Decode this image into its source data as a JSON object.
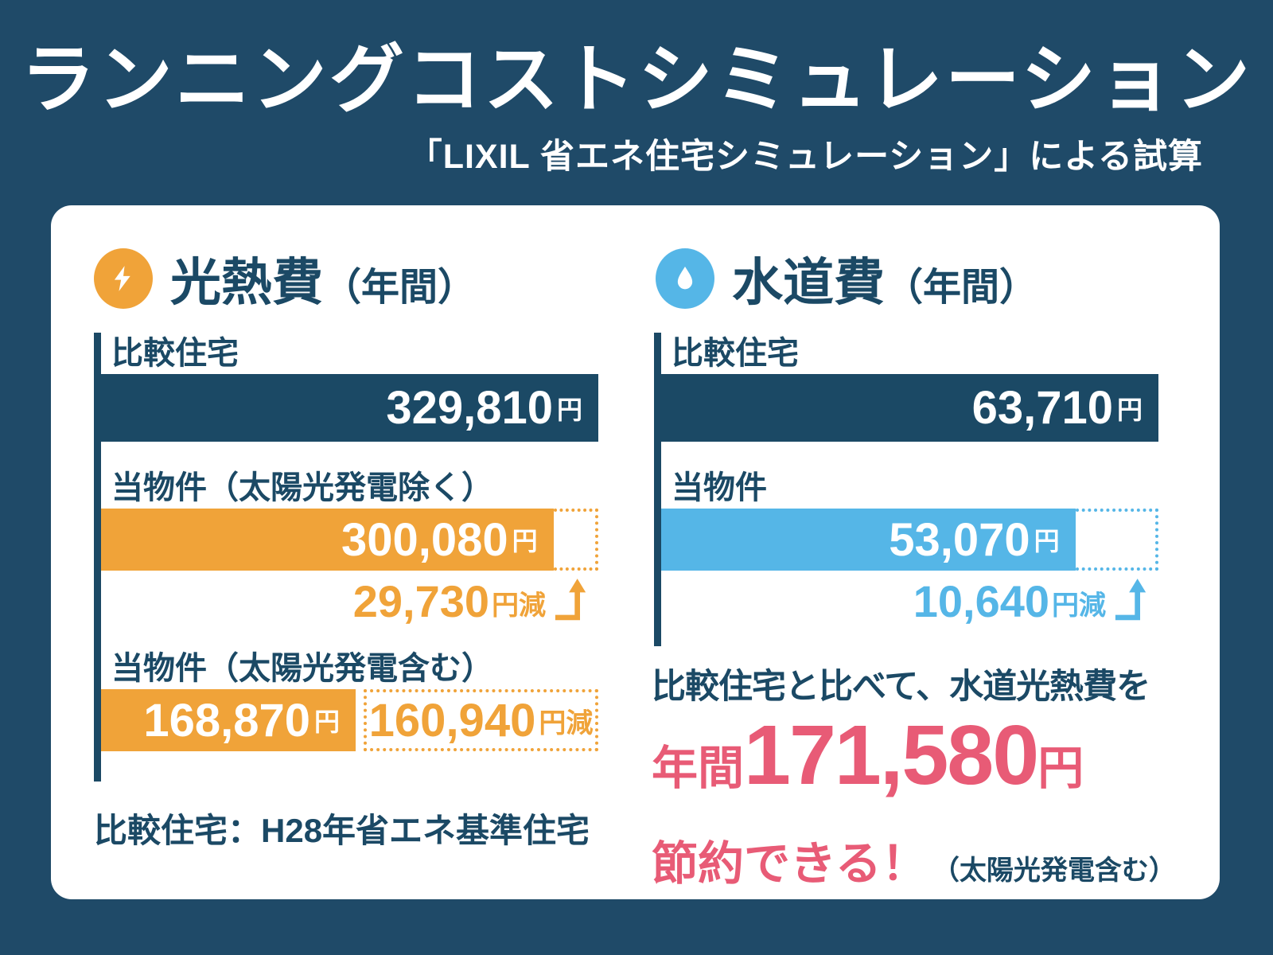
{
  "header": {
    "title": "ランニングコストシミュレーション",
    "subtitle": "「LIXIL 省エネ住宅シミュレーション」による試算"
  },
  "note": "比較住宅：H28年省エネ基準住宅",
  "summary": {
    "line1": "比較住宅と比べて、水道光熱費を",
    "prefix": "年間",
    "amount": "171,580",
    "unit": "円",
    "line3": "節約できる！",
    "line3_note": "（太陽光発電含む）"
  },
  "colors": {
    "background_navy": "#1F4A68",
    "bar_navy": "#1B4965",
    "accent_orange": "#F0A339",
    "accent_blue": "#55B6E7",
    "accent_pink": "#E85B76",
    "card_white": "#FFFFFF"
  },
  "icons": {
    "energy": "lightning-icon",
    "water": "water-drop-icon",
    "reduction_arrow": "up-arrow-icon"
  },
  "chart_data": [
    {
      "type": "bar",
      "orientation": "horizontal",
      "title": "光熱費",
      "title_suffix": "（年間）",
      "unit": "円",
      "max_value": 329810,
      "bars": [
        {
          "label": "比較住宅",
          "value": 329810,
          "display": "329,810",
          "color": "#1B4965"
        },
        {
          "label": "当物件（太陽光発電除く）",
          "value": 300080,
          "display": "300,080",
          "color": "#F0A339",
          "reduction_value": 29730,
          "reduction_display": "29,730",
          "reduction_unit": "円減"
        },
        {
          "label": "当物件（太陽光発電含む）",
          "value": 168870,
          "display": "168,870",
          "color": "#F0A339",
          "reduction_value": 160940,
          "reduction_display": "160,940",
          "reduction_unit": "円減"
        }
      ]
    },
    {
      "type": "bar",
      "orientation": "horizontal",
      "title": "水道費",
      "title_suffix": "（年間）",
      "unit": "円",
      "max_value": 63710,
      "bars": [
        {
          "label": "比較住宅",
          "value": 63710,
          "display": "63,710",
          "color": "#1B4965"
        },
        {
          "label": "当物件",
          "value": 53070,
          "display": "53,070",
          "color": "#55B6E7",
          "reduction_value": 10640,
          "reduction_display": "10,640",
          "reduction_unit": "円減"
        }
      ]
    }
  ]
}
